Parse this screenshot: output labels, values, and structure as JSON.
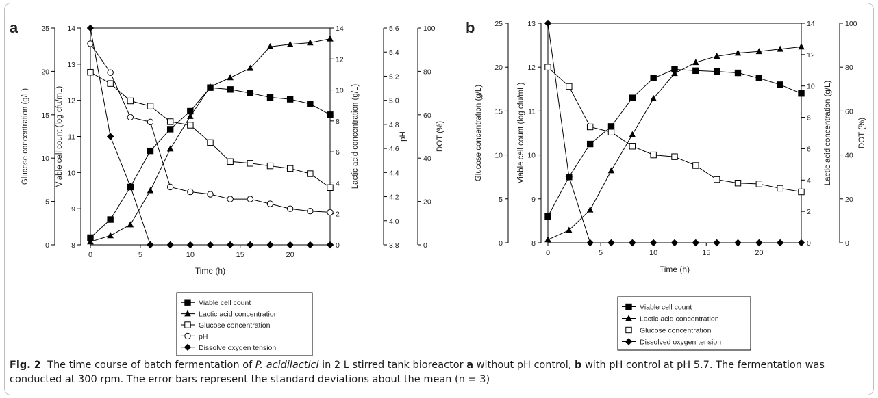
{
  "chart_data": [
    {
      "panel_label": "a",
      "type": "line",
      "xlabel": "Time (h)",
      "xlim": [
        0,
        24
      ],
      "x_ticks": [
        0,
        5,
        10,
        15,
        20
      ],
      "axes": [
        {
          "id": "glucose",
          "label": "Glucose concentration (g/L)",
          "lim": [
            0,
            25
          ],
          "ticks": [
            0,
            5,
            10,
            15,
            20,
            25
          ]
        },
        {
          "id": "viable",
          "label": "Viable cell count (log cfu/mL)",
          "lim": [
            8,
            14
          ],
          "ticks": [
            8,
            9,
            10,
            11,
            12,
            13,
            14
          ]
        },
        {
          "id": "lactic",
          "label": "Lactic acid concentration (g/L)",
          "lim": [
            0,
            14
          ],
          "ticks": [
            0,
            2,
            4,
            6,
            8,
            10,
            12,
            14
          ]
        },
        {
          "id": "ph",
          "label": "pH",
          "lim": [
            3.8,
            5.6
          ],
          "ticks": [
            "3.8",
            "4.0",
            "4.2",
            "4.4",
            "4.6",
            "4.8",
            "5.0",
            "5.2",
            "5.4",
            "5.6"
          ]
        },
        {
          "id": "dot",
          "label": "DOT (%)",
          "lim": [
            0,
            100
          ],
          "ticks": [
            0,
            20,
            40,
            60,
            80,
            100
          ]
        }
      ],
      "series": [
        {
          "name": "Viable cell count",
          "axis": "viable",
          "marker": "square-filled",
          "x": [
            0,
            2,
            4,
            6,
            8,
            10,
            12,
            14,
            16,
            18,
            20,
            22,
            24
          ],
          "y": [
            8.2,
            8.7,
            9.6,
            10.6,
            11.2,
            11.7,
            12.35,
            12.3,
            12.2,
            12.08,
            12.03,
            11.9,
            11.6
          ]
        },
        {
          "name": "Lactic acid concentration",
          "axis": "lactic",
          "marker": "triangle-filled",
          "x": [
            0,
            2,
            4,
            6,
            8,
            10,
            12,
            14,
            16,
            18,
            20,
            22,
            24
          ],
          "y": [
            0.2,
            0.6,
            1.3,
            3.5,
            6.2,
            8.3,
            10.2,
            10.8,
            11.4,
            12.8,
            12.95,
            13.05,
            13.3
          ]
        },
        {
          "name": "Glucose concentration",
          "axis": "glucose",
          "marker": "square-open",
          "x": [
            0,
            2,
            4,
            6,
            8,
            10,
            12,
            14,
            16,
            18,
            20,
            22,
            24
          ],
          "y": [
            19.9,
            18.6,
            16.6,
            16.0,
            14.2,
            13.8,
            11.8,
            9.6,
            9.4,
            9.1,
            8.8,
            8.2,
            6.6
          ]
        },
        {
          "name": "pH",
          "axis": "ph",
          "marker": "circle-open",
          "x": [
            0,
            2,
            4,
            6,
            8,
            10,
            12,
            14,
            16,
            18,
            20,
            22,
            24
          ],
          "y": [
            5.47,
            5.23,
            4.86,
            4.82,
            4.28,
            4.24,
            4.22,
            4.18,
            4.18,
            4.14,
            4.1,
            4.08,
            4.07
          ]
        },
        {
          "name": "Dissolve oxygen tension",
          "axis": "dot",
          "marker": "diamond-filled",
          "x": [
            0,
            2,
            4,
            6,
            8,
            10,
            12,
            14,
            16,
            18,
            20,
            22,
            24
          ],
          "y": [
            100,
            50,
            27,
            0,
            0,
            0,
            0,
            0,
            0,
            0,
            0,
            0,
            0
          ]
        }
      ],
      "legend": [
        "Viable cell count",
        "Lactic acid concentration",
        "Glucose concentration",
        "pH",
        "Dissolve oxygen tension"
      ],
      "legend_position": "below"
    },
    {
      "panel_label": "b",
      "type": "line",
      "xlabel": "Time (h)",
      "xlim": [
        0,
        24
      ],
      "x_ticks": [
        0,
        5,
        10,
        15,
        20
      ],
      "axes": [
        {
          "id": "glucose",
          "label": "Glucose concentration (g/L)",
          "lim": [
            0,
            25
          ],
          "ticks": [
            0,
            5,
            10,
            15,
            20,
            25
          ]
        },
        {
          "id": "viable",
          "label": "Viable cell count (log cfu/mL)",
          "lim": [
            8,
            13
          ],
          "ticks": [
            8,
            9,
            10,
            11,
            12,
            13
          ]
        },
        {
          "id": "lactic",
          "label": "Lactic acid concentration (g/L)",
          "lim": [
            0,
            14
          ],
          "ticks": [
            0,
            2,
            4,
            6,
            8,
            10,
            12,
            14
          ]
        },
        {
          "id": "dot",
          "label": "DOT (%)",
          "lim": [
            0,
            100
          ],
          "ticks": [
            0,
            20,
            40,
            60,
            80,
            100
          ]
        }
      ],
      "series": [
        {
          "name": "Viable cell count",
          "axis": "viable",
          "marker": "square-filled",
          "x": [
            0,
            2,
            4,
            6,
            8,
            10,
            12,
            14,
            16,
            18,
            20,
            22,
            24
          ],
          "y": [
            8.6,
            9.5,
            10.25,
            10.65,
            11.3,
            11.75,
            11.95,
            11.92,
            11.9,
            11.87,
            11.75,
            11.6,
            11.4
          ]
        },
        {
          "name": "Lactic acid concentration",
          "axis": "lactic",
          "marker": "triangle-filled",
          "x": [
            0,
            2,
            4,
            6,
            8,
            10,
            12,
            14,
            16,
            18,
            20,
            22,
            24
          ],
          "y": [
            0.2,
            0.8,
            2.1,
            4.6,
            6.9,
            9.2,
            10.8,
            11.5,
            11.9,
            12.1,
            12.2,
            12.35,
            12.5
          ]
        },
        {
          "name": "Glucose concentration",
          "axis": "glucose",
          "marker": "square-open",
          "x": [
            0,
            2,
            4,
            6,
            8,
            10,
            12,
            14,
            16,
            18,
            20,
            22,
            24
          ],
          "y": [
            20.0,
            17.8,
            13.2,
            12.6,
            11.0,
            10.0,
            9.8,
            8.8,
            7.2,
            6.8,
            6.7,
            6.2,
            5.8
          ]
        },
        {
          "name": "Dissolved oxygen tension",
          "axis": "dot",
          "marker": "diamond-filled",
          "x": [
            0,
            2,
            4,
            6,
            8,
            10,
            12,
            14,
            16,
            18,
            20,
            22,
            24
          ],
          "y": [
            100,
            30,
            0,
            0,
            0,
            0,
            0,
            0,
            0,
            0,
            0,
            0,
            0
          ]
        }
      ],
      "legend": [
        "Viable cell count",
        "Lactic acid concentration",
        "Glucose concentration",
        "Dissolved oxygen tension"
      ],
      "legend_position": "below"
    }
  ],
  "caption": {
    "label": "Fig. 2",
    "text_before": "The time course of batch fermentation of ",
    "organism": "P. acidilactici",
    "text_middle": " in 2 L stirred tank bioreactor ",
    "a": "a",
    "text_a": " without pH control, ",
    "b": "b",
    "text_b": " with pH control at pH 5.7. The fermentation was conducted at 300 rpm. The error bars represent the standard deviations about the mean (n = 3)"
  }
}
